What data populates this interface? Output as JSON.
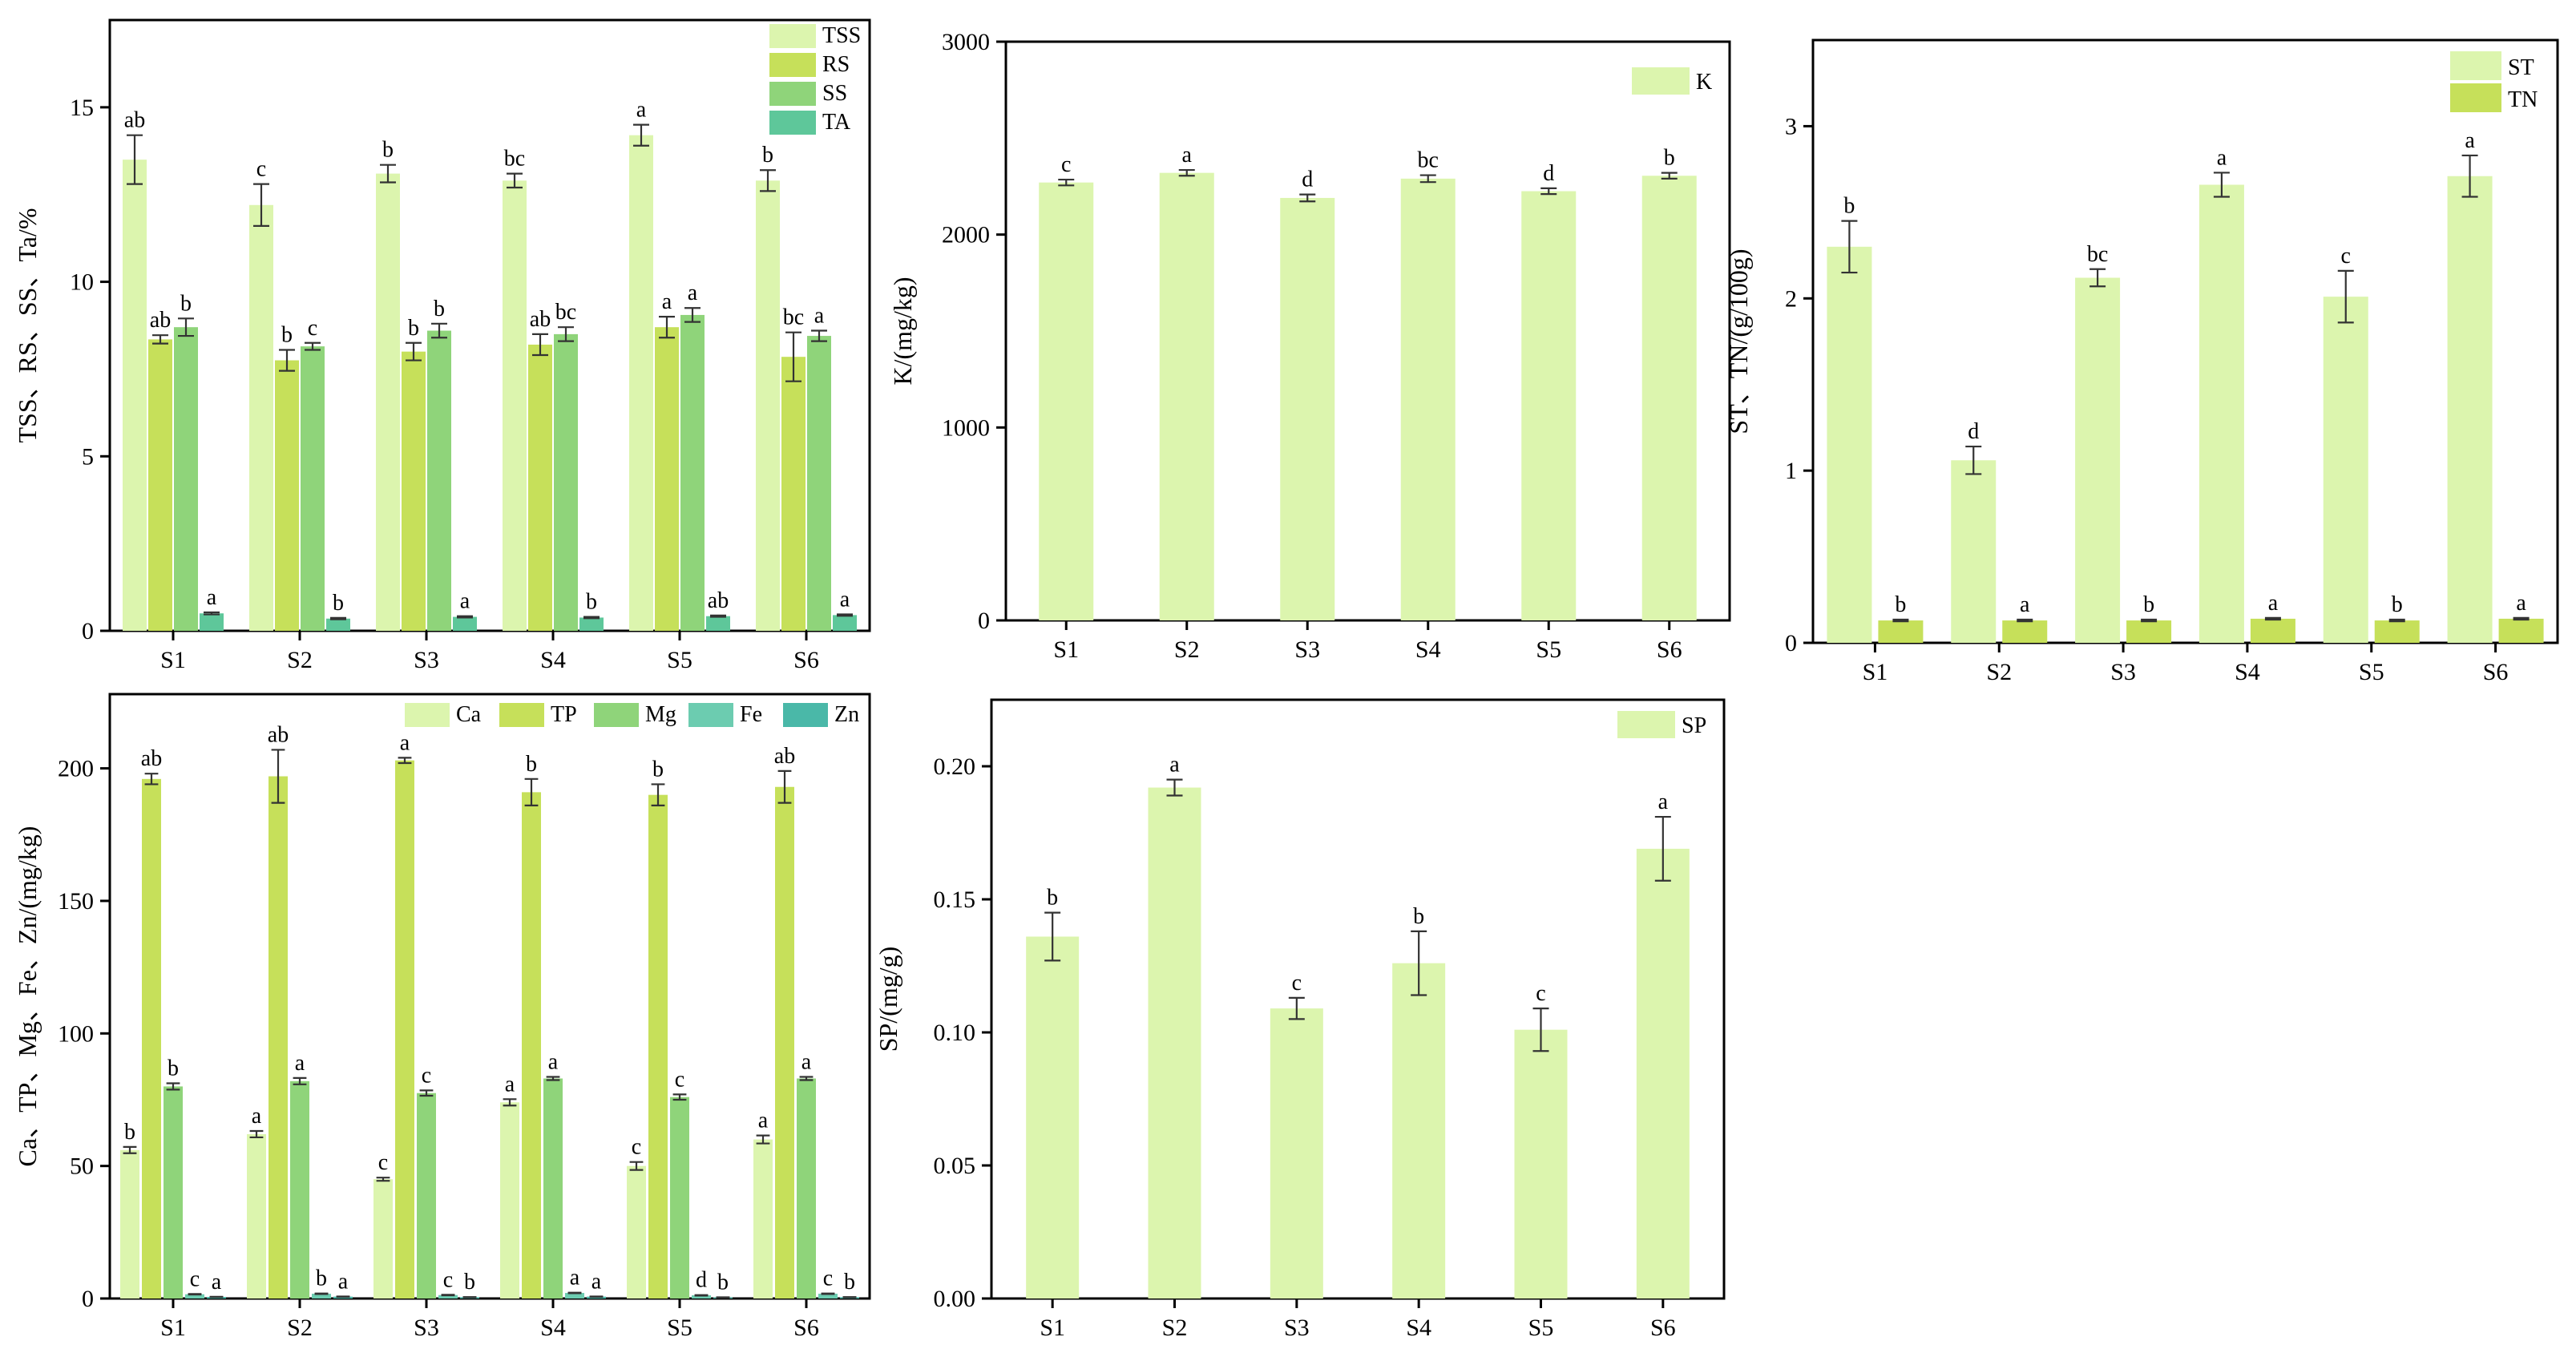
{
  "chart_data": [
    {
      "id": "panel-a",
      "type": "bar",
      "categories": [
        "S1",
        "S2",
        "S3",
        "S4",
        "S5",
        "S6"
      ],
      "ylabel": "TSS、RS、SS、Ta/%",
      "ylim": [
        0,
        17.5
      ],
      "yticks": [
        0,
        5,
        10,
        15
      ],
      "legend_placement": "top-right",
      "series": [
        {
          "name": "TSS",
          "color": "#dcf5ae",
          "values": [
            13.5,
            12.2,
            13.1,
            12.9,
            14.2,
            12.9
          ],
          "errors": [
            0.7,
            0.6,
            0.25,
            0.2,
            0.3,
            0.3
          ],
          "labels": [
            "ab",
            "c",
            "b",
            "bc",
            "a",
            "b"
          ]
        },
        {
          "name": "RS",
          "color": "#c6e05a",
          "values": [
            8.35,
            7.75,
            8.0,
            8.2,
            8.7,
            7.85
          ],
          "errors": [
            0.12,
            0.3,
            0.25,
            0.3,
            0.3,
            0.7
          ],
          "labels": [
            "ab",
            "b",
            "b",
            "ab",
            "a",
            "bc"
          ]
        },
        {
          "name": "SS",
          "color": "#8fd47a",
          "values": [
            8.7,
            8.15,
            8.6,
            8.5,
            9.05,
            8.45
          ],
          "errors": [
            0.25,
            0.1,
            0.2,
            0.2,
            0.2,
            0.15
          ],
          "labels": [
            "b",
            "c",
            "b",
            "bc",
            "a",
            "a"
          ]
        },
        {
          "name": "TA",
          "color": "#5ec79a",
          "values": [
            0.5,
            0.35,
            0.4,
            0.38,
            0.42,
            0.45
          ],
          "errors": [
            0.03,
            0.02,
            0.02,
            0.02,
            0.02,
            0.02
          ],
          "labels": [
            "a",
            "b",
            "a",
            "b",
            "ab",
            "a"
          ]
        }
      ]
    },
    {
      "id": "panel-b",
      "type": "bar",
      "categories": [
        "S1",
        "S2",
        "S3",
        "S4",
        "S5",
        "S6"
      ],
      "ylabel": "K/(mg/kg)",
      "ylim": [
        0,
        3000
      ],
      "yticks": [
        0,
        1000,
        2000,
        3000
      ],
      "legend_placement": "top-right",
      "series": [
        {
          "name": "K",
          "color": "#dcf5ae",
          "values": [
            2270,
            2320,
            2190,
            2290,
            2225,
            2305
          ],
          "errors": [
            15,
            15,
            18,
            18,
            15,
            15
          ],
          "labels": [
            "c",
            "a",
            "d",
            "bc",
            "d",
            "b"
          ]
        }
      ]
    },
    {
      "id": "panel-c",
      "type": "bar",
      "categories": [
        "S1",
        "S2",
        "S3",
        "S4",
        "S5",
        "S6"
      ],
      "ylabel": "ST、TN/(g/100g)",
      "ylim": [
        0,
        3.5
      ],
      "yticks": [
        0,
        1,
        2,
        3
      ],
      "legend_placement": "top-right",
      "series": [
        {
          "name": "ST",
          "color": "#dcf5ae",
          "values": [
            2.3,
            1.06,
            2.12,
            2.66,
            2.01,
            2.71
          ],
          "errors": [
            0.15,
            0.08,
            0.05,
            0.07,
            0.15,
            0.12
          ],
          "labels": [
            "b",
            "d",
            "bc",
            "a",
            "c",
            "a"
          ]
        },
        {
          "name": "TN",
          "color": "#c6e05a",
          "values": [
            0.13,
            0.13,
            0.13,
            0.14,
            0.13,
            0.14
          ],
          "errors": [
            0.005,
            0.005,
            0.005,
            0.005,
            0.005,
            0.005
          ],
          "labels": [
            "b",
            "a",
            "b",
            "a",
            "b",
            "a"
          ]
        }
      ]
    },
    {
      "id": "panel-d",
      "type": "bar",
      "categories": [
        "S1",
        "S2",
        "S3",
        "S4",
        "S5",
        "S6"
      ],
      "ylabel": "Ca、TP、Mg、Fe、Zn/(mg/kg)",
      "ylim": [
        0,
        228
      ],
      "yticks": [
        0,
        50,
        100,
        150,
        200
      ],
      "legend_placement": "top",
      "series": [
        {
          "name": "Ca",
          "color": "#dcf5ae",
          "values": [
            56,
            62,
            45,
            74,
            50,
            60
          ],
          "errors": [
            1.2,
            1.2,
            0.6,
            1.2,
            1.5,
            1.5
          ],
          "labels": [
            "b",
            "a",
            "c",
            "a",
            "c",
            "a"
          ]
        },
        {
          "name": "TP",
          "color": "#c6e05a",
          "values": [
            196,
            197,
            203,
            191,
            190,
            193
          ],
          "errors": [
            2,
            10,
            1,
            5,
            4,
            6
          ],
          "labels": [
            "ab",
            "ab",
            "a",
            "b",
            "b",
            "ab"
          ]
        },
        {
          "name": "Mg",
          "color": "#8fd47a",
          "values": [
            80,
            82,
            77.5,
            83,
            76,
            83
          ],
          "errors": [
            1.2,
            1.2,
            1.0,
            0.6,
            1.0,
            0.6
          ],
          "labels": [
            "b",
            "a",
            "c",
            "a",
            "c",
            "a"
          ]
        },
        {
          "name": "Fe",
          "color": "#6cccb0",
          "values": [
            1.6,
            1.8,
            1.3,
            2.1,
            1.2,
            1.8
          ],
          "errors": [
            0.1,
            0.1,
            0.1,
            0.1,
            0.1,
            0.1
          ],
          "labels": [
            "c",
            "b",
            "c",
            "a",
            "d",
            "c"
          ]
        },
        {
          "name": "Zn",
          "color": "#4ab8a8",
          "values": [
            0.6,
            0.7,
            0.5,
            0.7,
            0.4,
            0.5
          ],
          "errors": [
            0.05,
            0.05,
            0.05,
            0.05,
            0.05,
            0.05
          ],
          "labels": [
            "a",
            "a",
            "b",
            "a",
            "b",
            "b"
          ]
        }
      ]
    },
    {
      "id": "panel-e",
      "type": "bar",
      "categories": [
        "S1",
        "S2",
        "S3",
        "S4",
        "S5",
        "S6"
      ],
      "ylabel": "SP/(mg/g)",
      "ylim": [
        0,
        0.225
      ],
      "yticks": [
        "0.00",
        "0.05",
        "0.10",
        "0.15",
        "0.20"
      ],
      "legend_placement": "top-right",
      "series": [
        {
          "name": "SP",
          "color": "#dcf5ae",
          "values": [
            0.136,
            0.192,
            0.109,
            0.126,
            0.101,
            0.169
          ],
          "errors": [
            0.009,
            0.003,
            0.004,
            0.012,
            0.008,
            0.012
          ],
          "labels": [
            "b",
            "a",
            "c",
            "b",
            "c",
            "a"
          ]
        }
      ]
    }
  ]
}
